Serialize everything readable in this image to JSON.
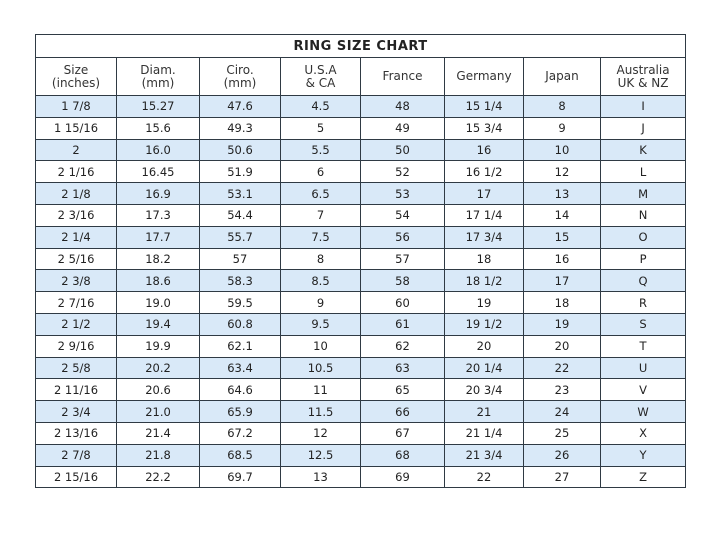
{
  "title": "RING SIZE CHART",
  "headers": [
    [
      "Size",
      "(inches)"
    ],
    [
      "Diam.",
      "(mm)"
    ],
    [
      "Ciro.",
      "(mm)"
    ],
    [
      "U.S.A",
      "& CA"
    ],
    [
      "France",
      ""
    ],
    [
      "Germany",
      ""
    ],
    [
      "Japan",
      ""
    ],
    [
      "Australia",
      "UK & NZ"
    ]
  ],
  "rows": [
    [
      "1 7/8",
      "15.27",
      "47.6",
      "4.5",
      "48",
      "15 1/4",
      "8",
      "I"
    ],
    [
      "1 15/16",
      "15.6",
      "49.3",
      "5",
      "49",
      "15 3/4",
      "9",
      "J"
    ],
    [
      "2",
      "16.0",
      "50.6",
      "5.5",
      "50",
      "16",
      "10",
      "K"
    ],
    [
      "2 1/16",
      "16.45",
      "51.9",
      "6",
      "52",
      "16 1/2",
      "12",
      "L"
    ],
    [
      "2 1/8",
      "16.9",
      "53.1",
      "6.5",
      "53",
      "17",
      "13",
      "M"
    ],
    [
      "2 3/16",
      "17.3",
      "54.4",
      "7",
      "54",
      "17 1/4",
      "14",
      "N"
    ],
    [
      "2 1/4",
      "17.7",
      "55.7",
      "7.5",
      "56",
      "17 3/4",
      "15",
      "O"
    ],
    [
      "2 5/16",
      "18.2",
      "57",
      "8",
      "57",
      "18",
      "16",
      "P"
    ],
    [
      "2 3/8",
      "18.6",
      "58.3",
      "8.5",
      "58",
      "18 1/2",
      "17",
      "Q"
    ],
    [
      "2 7/16",
      "19.0",
      "59.5",
      "9",
      "60",
      "19",
      "18",
      "R"
    ],
    [
      "2 1/2",
      "19.4",
      "60.8",
      "9.5",
      "61",
      "19 1/2",
      "19",
      "S"
    ],
    [
      "2 9/16",
      "19.9",
      "62.1",
      "10",
      "62",
      "20",
      "20",
      "T"
    ],
    [
      "2 5/8",
      "20.2",
      "63.4",
      "10.5",
      "63",
      "20 1/4",
      "22",
      "U"
    ],
    [
      "2 11/16",
      "20.6",
      "64.6",
      "11",
      "65",
      "20 3/4",
      "23",
      "V"
    ],
    [
      "2 3/4",
      "21.0",
      "65.9",
      "11.5",
      "66",
      "21",
      "24",
      "W"
    ],
    [
      "2 13/16",
      "21.4",
      "67.2",
      "12",
      "67",
      "21 1/4",
      "25",
      "X"
    ],
    [
      "2 7/8",
      "21.8",
      "68.5",
      "12.5",
      "68",
      "21 3/4",
      "26",
      "Y"
    ],
    [
      "2 15/16",
      "22.2",
      "69.7",
      "13",
      "69",
      "22",
      "27",
      "Z"
    ]
  ],
  "colors": {
    "row_highlight": "#d9e9f8",
    "border": "#2f3a44"
  }
}
